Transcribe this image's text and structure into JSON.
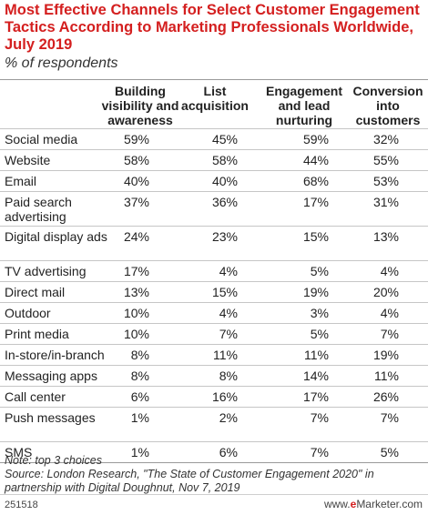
{
  "chart_data": {
    "type": "table",
    "title": "Most Effective Channels for Select Customer Engagement Tactics According to Marketing Professionals Worldwide, July 2019",
    "subtitle": "% of respondents",
    "columns": [
      "Building visibility and awareness",
      "List acquisition",
      "Engagement and lead nurturing",
      "Conversion into customers"
    ],
    "rows": [
      {
        "label": "Social media",
        "values": [
          "59%",
          "45%",
          "59%",
          "32%"
        ]
      },
      {
        "label": "Website",
        "values": [
          "58%",
          "58%",
          "44%",
          "55%"
        ]
      },
      {
        "label": "Email",
        "values": [
          "40%",
          "40%",
          "68%",
          "53%"
        ]
      },
      {
        "label": "Paid search advertising",
        "values": [
          "37%",
          "36%",
          "17%",
          "31%"
        ]
      },
      {
        "label": "Digital display ads",
        "values": [
          "24%",
          "23%",
          "15%",
          "13%"
        ]
      },
      {
        "label": "TV advertising",
        "values": [
          "17%",
          "4%",
          "5%",
          "4%"
        ]
      },
      {
        "label": "Direct mail",
        "values": [
          "13%",
          "15%",
          "19%",
          "20%"
        ]
      },
      {
        "label": "Outdoor",
        "values": [
          "10%",
          "4%",
          "3%",
          "4%"
        ]
      },
      {
        "label": "Print media",
        "values": [
          "10%",
          "7%",
          "5%",
          "7%"
        ]
      },
      {
        "label": "In-store/in-branch",
        "values": [
          "8%",
          "11%",
          "11%",
          "19%"
        ]
      },
      {
        "label": "Messaging apps",
        "values": [
          "8%",
          "8%",
          "14%",
          "11%"
        ]
      },
      {
        "label": "Call center",
        "values": [
          "6%",
          "16%",
          "17%",
          "26%"
        ]
      },
      {
        "label": "Push messages",
        "values": [
          "1%",
          "2%",
          "7%",
          "7%"
        ]
      },
      {
        "label": "SMS",
        "values": [
          "1%",
          "6%",
          "7%",
          "5%"
        ]
      }
    ],
    "note": "Note: top 3 choices",
    "source": "Source: London Research, \"The State of Customer Engagement 2020\" in partnership with Digital Doughnut, Nov 7, 2019"
  },
  "footer": {
    "chart_id": "251518",
    "logo_prefix": "www.",
    "logo_e": "e",
    "logo_suffix": "Marketer.com"
  },
  "colors": {
    "title": "#d41f1f",
    "text": "#222222",
    "rule": "#c6c6c6"
  }
}
